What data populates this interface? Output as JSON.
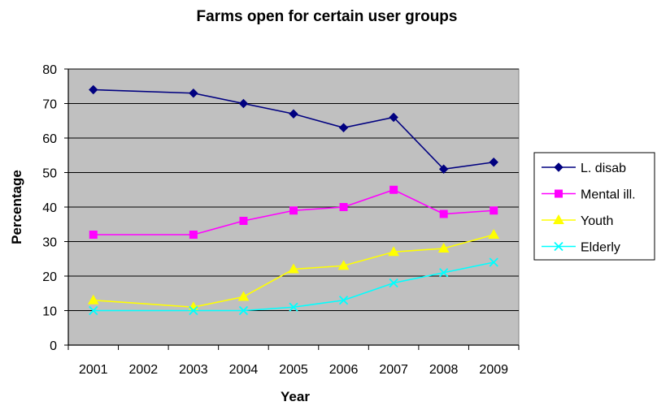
{
  "chart_data": {
    "type": "line",
    "title": "Farms open for certain user groups",
    "xlabel": "Year",
    "ylabel": "Percentage",
    "categories": [
      "2001",
      "2002",
      "2003",
      "2004",
      "2005",
      "2006",
      "2007",
      "2008",
      "2009"
    ],
    "ylim": [
      0,
      80
    ],
    "yticks": [
      0,
      10,
      20,
      30,
      40,
      50,
      60,
      70,
      80
    ],
    "grid": true,
    "legend_position": "right",
    "plot_background": "#c0c0c0",
    "series": [
      {
        "name": "L. disab",
        "color": "#000080",
        "marker": "diamond",
        "points": [
          [
            2001,
            74
          ],
          [
            2003,
            73
          ],
          [
            2004,
            70
          ],
          [
            2005,
            67
          ],
          [
            2006,
            63
          ],
          [
            2007,
            66
          ],
          [
            2008,
            51
          ],
          [
            2009,
            53
          ]
        ]
      },
      {
        "name": "Mental ill.",
        "color": "#ff00ff",
        "marker": "square",
        "points": [
          [
            2001,
            32
          ],
          [
            2003,
            32
          ],
          [
            2004,
            36
          ],
          [
            2005,
            39
          ],
          [
            2006,
            40
          ],
          [
            2007,
            45
          ],
          [
            2008,
            38
          ],
          [
            2009,
            39
          ]
        ]
      },
      {
        "name": "Youth",
        "color": "#ffff00",
        "marker": "triangle",
        "points": [
          [
            2001,
            13
          ],
          [
            2003,
            11
          ],
          [
            2004,
            14
          ],
          [
            2005,
            22
          ],
          [
            2006,
            23
          ],
          [
            2007,
            27
          ],
          [
            2008,
            28
          ],
          [
            2009,
            32
          ]
        ]
      },
      {
        "name": "Elderly",
        "color": "#00ffff",
        "marker": "x",
        "points": [
          [
            2001,
            10
          ],
          [
            2003,
            10
          ],
          [
            2004,
            10
          ],
          [
            2005,
            11
          ],
          [
            2006,
            13
          ],
          [
            2007,
            18
          ],
          [
            2008,
            21
          ],
          [
            2009,
            24
          ]
        ]
      }
    ]
  }
}
